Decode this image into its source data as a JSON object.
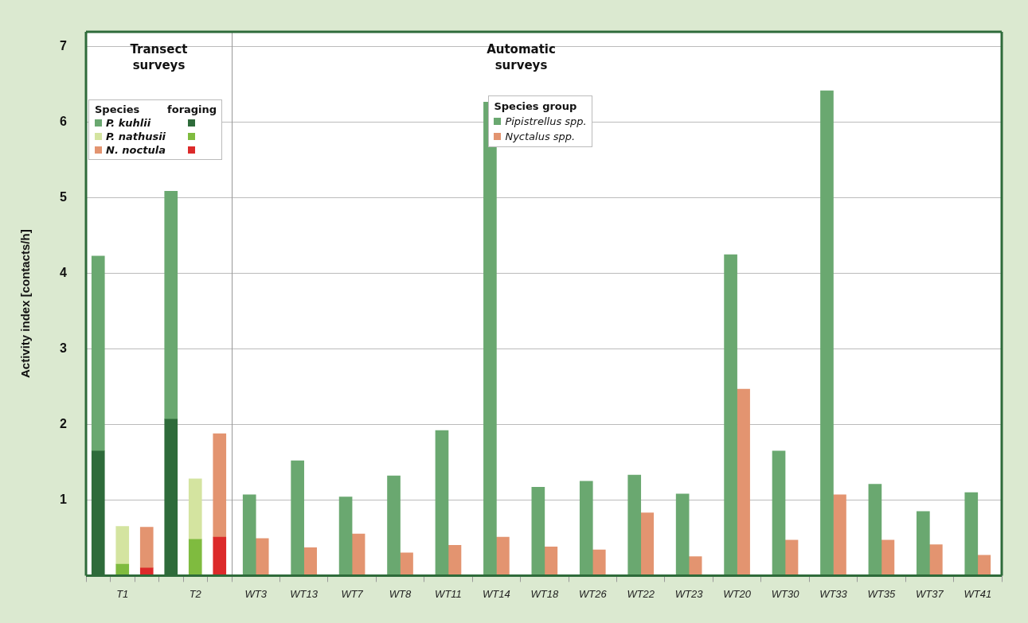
{
  "chart_data": [
    {
      "type": "bar",
      "title": "Transect surveys",
      "ylabel": "Activity index [contacts/h]",
      "stacked": true,
      "grid": "y",
      "legend": "top",
      "legend_title": "Species",
      "annotations": [
        "foraging"
      ],
      "categories": [
        null,
        "T1",
        null,
        null,
        "T2",
        null
      ],
      "ylim": [
        0,
        7.2
      ],
      "yticks": [
        {
          "value": 0,
          "label": null
        },
        1,
        2,
        3,
        4,
        5,
        6,
        7
      ],
      "series": [
        {
          "color": "#2e6b3a",
          "values": [
            1.65,
            null,
            null,
            2.07,
            null,
            null
          ]
        },
        {
          "name": "P. kuhlii",
          "color": "#6aa870",
          "values": [
            2.58,
            null,
            null,
            3.02,
            null,
            null
          ]
        },
        {
          "color": "#7fbb3f",
          "values": [
            null,
            0.15,
            null,
            null,
            0.48,
            null
          ]
        },
        {
          "name": "P. nathusii",
          "color": "#d4e4a0",
          "values": [
            null,
            0.5,
            null,
            null,
            0.8,
            null
          ]
        },
        {
          "color": "#dc2a2a",
          "values": [
            null,
            null,
            0.1,
            null,
            null,
            0.51
          ]
        },
        {
          "name": "N. noctula",
          "color": "#e39470",
          "values": [
            null,
            null,
            0.54,
            null,
            null,
            1.37
          ]
        }
      ]
    },
    {
      "type": "bar",
      "title": "Automatic surveys",
      "grid": "y",
      "legend": "top",
      "legend_title": "Species group",
      "tick_labels": "x",
      "categories": [
        "WT3",
        "WT13",
        "WT7",
        "WT8",
        "WT11",
        "WT14",
        "WT18",
        "WT26",
        "WT22",
        "WT23",
        "WT20",
        "WT30",
        "WT33",
        "WT35",
        "WT37",
        "WT41"
      ],
      "ylim": [
        0,
        7.2
      ],
      "yticks": [
        {
          "value": 0,
          "label": null
        },
        1,
        2,
        3,
        4,
        5,
        6,
        7
      ],
      "series": [
        {
          "name": "Pipistrellus spp.",
          "color": "#6aa870",
          "values": [
            1.07,
            1.52,
            1.04,
            1.32,
            1.92,
            6.27,
            1.17,
            1.25,
            1.33,
            1.08,
            4.25,
            1.65,
            6.42,
            1.21,
            0.85,
            1.1
          ]
        },
        {
          "name": "Nyctalus spp.",
          "color": "#e39470",
          "values": [
            0.49,
            0.37,
            0.55,
            0.3,
            0.4,
            0.51,
            0.38,
            0.34,
            0.83,
            0.25,
            2.47,
            0.47,
            1.07,
            0.47,
            0.41,
            0.27
          ]
        }
      ]
    }
  ]
}
